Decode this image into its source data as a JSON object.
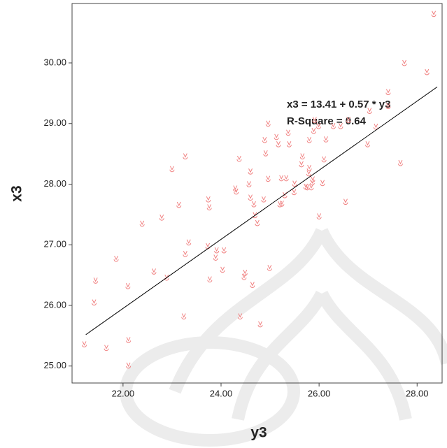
{
  "chart_data": {
    "type": "scatter",
    "x_label": "y3",
    "y_label": "x3",
    "annotations": [
      "x3 = 13.41 + 0.57 * y3",
      "R-Square = 0.64"
    ],
    "fit": {
      "intercept": 13.41,
      "slope": 0.57,
      "x_range": [
        21.24,
        28.41
      ]
    },
    "color": "#f08080",
    "xlim": [
      20.96,
      28.51
    ],
    "ylim": [
      24.72,
      30.98
    ],
    "xticks": [
      {
        "value": 22,
        "label": "22.00"
      },
      {
        "value": 24,
        "label": "24.00"
      },
      {
        "value": 26,
        "label": "26.00"
      },
      {
        "value": 28,
        "label": "28.00"
      }
    ],
    "yticks": [
      {
        "value": 25,
        "label": "25.00"
      },
      {
        "value": 26,
        "label": "26.00"
      },
      {
        "value": 27,
        "label": "27.00"
      },
      {
        "value": 28,
        "label": "28.00"
      },
      {
        "value": 29,
        "label": "29.00"
      },
      {
        "value": 30,
        "label": "30.00"
      }
    ],
    "x": [
      21.21,
      21.41,
      21.44,
      21.66,
      21.86,
      22.1,
      22.11,
      22.11,
      22.39,
      22.63,
      22.79,
      22.89,
      23.0,
      23.14,
      23.24,
      23.27,
      23.27,
      23.34,
      23.73,
      23.74,
      23.76,
      23.77,
      23.89,
      23.91,
      24.03,
      24.06,
      24.29,
      24.31,
      24.37,
      24.39,
      24.47,
      24.49,
      24.57,
      24.6,
      24.6,
      24.64,
      24.67,
      24.69,
      24.74,
      24.8,
      24.87,
      24.91,
      24.96,
      24.99,
      25.2,
      25.23,
      25.24,
      25.3,
      25.33,
      25.37,
      25.39,
      25.49,
      25.5,
      25.64,
      25.66,
      25.73,
      25.76,
      25.79,
      25.8,
      25.8,
      25.84,
      25.86,
      25.87,
      25.89,
      25.91,
      25.99,
      26.0,
      26.07,
      26.1,
      26.14,
      26.29,
      26.44,
      26.54,
      26.6,
      26.99,
      27.03,
      27.16,
      27.41,
      27.41,
      27.66,
      27.74,
      28.2,
      28.34,
      24.89,
      24.96,
      25.13,
      25.17
    ],
    "y": [
      25.36,
      26.05,
      26.41,
      25.3,
      26.77,
      26.32,
      25.43,
      25.01,
      27.35,
      26.56,
      27.45,
      26.46,
      28.25,
      27.66,
      25.82,
      28.46,
      26.85,
      27.04,
      26.98,
      27.75,
      27.62,
      26.43,
      26.79,
      26.91,
      26.59,
      26.91,
      27.93,
      27.88,
      28.42,
      25.82,
      26.47,
      26.54,
      28.0,
      28.21,
      27.78,
      26.34,
      27.67,
      27.49,
      27.36,
      25.69,
      27.75,
      28.51,
      28.09,
      26.62,
      27.67,
      28.1,
      27.68,
      27.82,
      28.1,
      28.85,
      28.66,
      27.87,
      28.01,
      28.33,
      28.46,
      27.96,
      27.95,
      28.18,
      28.27,
      28.73,
      27.95,
      28.03,
      28.08,
      28.88,
      29.06,
      28.96,
      27.47,
      28.02,
      28.41,
      28.74,
      28.96,
      28.96,
      27.71,
      29.06,
      28.66,
      29.21,
      28.95,
      29.52,
      29.29,
      28.35,
      30.0,
      29.85,
      30.81,
      28.73,
      29.0,
      28.78,
      28.66
    ]
  }
}
